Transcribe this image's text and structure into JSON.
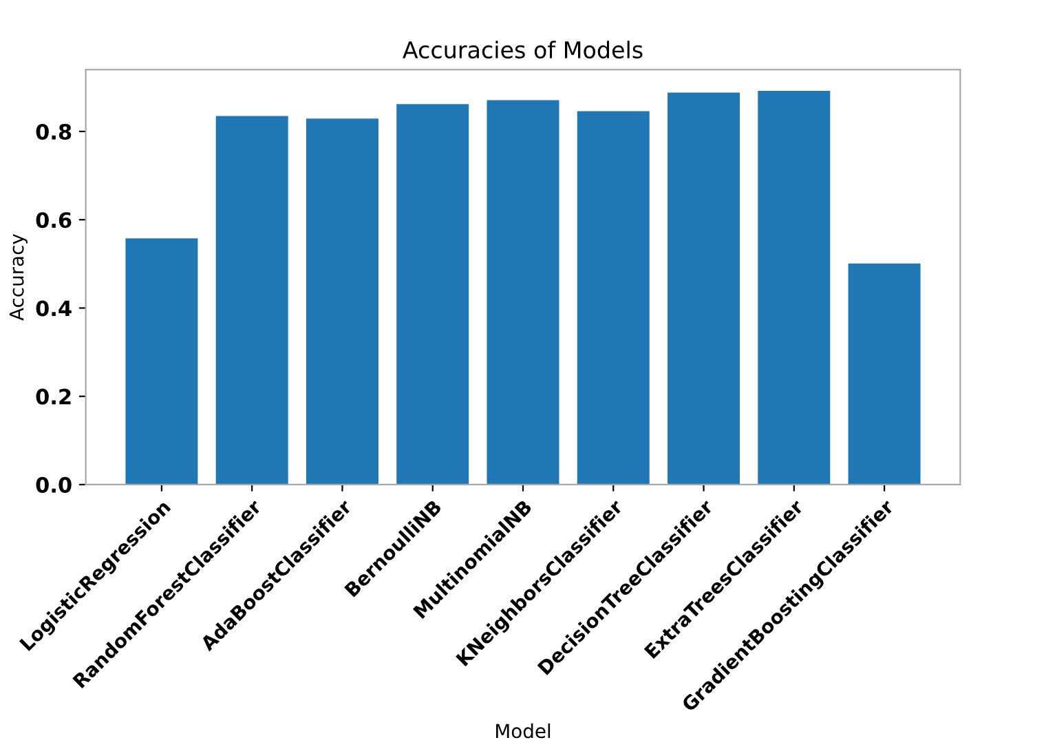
{
  "chart_data": {
    "type": "bar",
    "title": "Accuracies of Models",
    "xlabel": "Model",
    "ylabel": "Accuracy",
    "categories": [
      "LogisticRegression",
      "RandomForestClassifier",
      "AdaBoostClassifier",
      "BernoulliNB",
      "MultinomialNB",
      "KNeighborsClassifier",
      "DecisionTreeClassifier",
      "ExtraTreesClassifier",
      "GradientBoostingClassifier"
    ],
    "values": [
      0.558,
      0.835,
      0.829,
      0.862,
      0.871,
      0.846,
      0.888,
      0.892,
      0.501
    ],
    "color": "#1f77b4",
    "ylim": [
      0,
      0.94
    ],
    "yticks": [
      {
        "value": 0,
        "label": "0.0"
      },
      0.2,
      0.4,
      0.6,
      0.8
    ],
    "grid": false,
    "legend": false
  }
}
